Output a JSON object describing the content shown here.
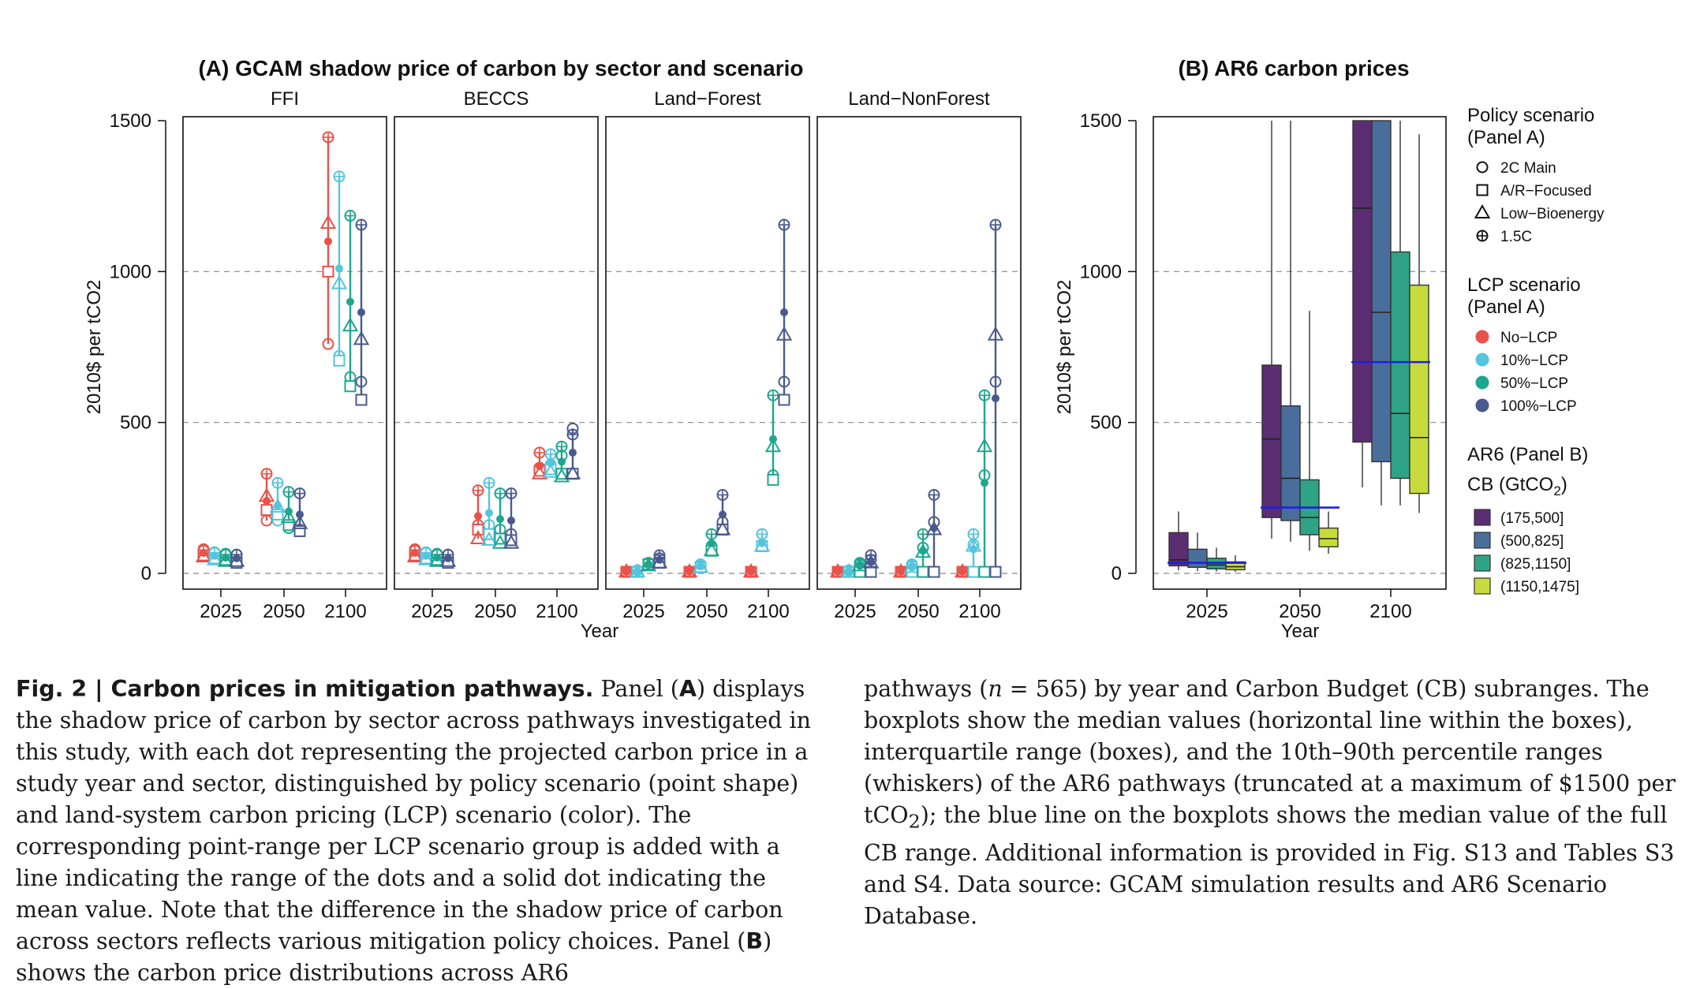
{
  "chart_data": [
    {
      "type": "scatter",
      "title": "(A) GCAM shadow price of carbon by sector and scenario",
      "ylabel": "2010$ per tCO2",
      "xlabel": "Year",
      "ylim": [
        0,
        1500
      ],
      "yticks": [
        "0",
        "500",
        "1000",
        "1500"
      ],
      "xticks": [
        "2025",
        "2050",
        "2100"
      ],
      "grid": "dashed horizontal at 0, 500, 1000",
      "facets": [
        "FFI",
        "BECCS",
        "Land−Forest",
        "Land−NonForest"
      ],
      "years": [
        "2025",
        "2050",
        "2100"
      ],
      "policy_scenarios": [
        "2C Main",
        "A/R−Focused",
        "Low−Bioenergy",
        "1.5C"
      ],
      "lcp_scenarios": [
        "No−LCP",
        "10%−LCP",
        "50%−LCP",
        "100%−LCP"
      ],
      "lcp_colors": [
        "#E8524A",
        "#55C4DD",
        "#1FA68E",
        "#4A5A8E"
      ],
      "series": [
        {
          "facet": "FFI",
          "year": "2025",
          "lcp": "No−LCP",
          "points": [
            80,
            60,
            55,
            75
          ],
          "mean": 68
        },
        {
          "facet": "FFI",
          "year": "2025",
          "lcp": "10%−LCP",
          "points": [
            70,
            50,
            45,
            68
          ],
          "mean": 58
        },
        {
          "facet": "FFI",
          "year": "2025",
          "lcp": "50%−LCP",
          "points": [
            65,
            45,
            40,
            62
          ],
          "mean": 52
        },
        {
          "facet": "FFI",
          "year": "2025",
          "lcp": "100%−LCP",
          "points": [
            62,
            35,
            40,
            62
          ],
          "mean": 50
        },
        {
          "facet": "FFI",
          "year": "2050",
          "lcp": "No−LCP",
          "points": [
            175,
            210,
            255,
            330
          ],
          "mean": 240
        },
        {
          "facet": "FFI",
          "year": "2050",
          "lcp": "10%−LCP",
          "points": [
            175,
            195,
            220,
            300
          ],
          "mean": 225
        },
        {
          "facet": "FFI",
          "year": "2050",
          "lcp": "50%−LCP",
          "points": [
            150,
            160,
            185,
            270
          ],
          "mean": 205
        },
        {
          "facet": "FFI",
          "year": "2050",
          "lcp": "100%−LCP",
          "points": [
            145,
            140,
            165,
            265
          ],
          "mean": 195
        },
        {
          "facet": "FFI",
          "year": "2100",
          "lcp": "No−LCP",
          "points": [
            760,
            1000,
            1160,
            1445
          ],
          "mean": 1100
        },
        {
          "facet": "FFI",
          "year": "2100",
          "lcp": "10%−LCP",
          "points": [
            720,
            705,
            960,
            1315
          ],
          "mean": 1010
        },
        {
          "facet": "FFI",
          "year": "2100",
          "lcp": "50%−LCP",
          "points": [
            650,
            620,
            820,
            1185
          ],
          "mean": 900
        },
        {
          "facet": "FFI",
          "year": "2100",
          "lcp": "100%−LCP",
          "points": [
            635,
            575,
            775,
            1155
          ],
          "mean": 865
        },
        {
          "facet": "BECCS",
          "year": "2025",
          "lcp": "No−LCP",
          "points": [
            80,
            60,
            55,
            75
          ],
          "mean": 68
        },
        {
          "facet": "BECCS",
          "year": "2025",
          "lcp": "10%−LCP",
          "points": [
            70,
            50,
            45,
            68
          ],
          "mean": 58
        },
        {
          "facet": "BECCS",
          "year": "2025",
          "lcp": "50%−LCP",
          "points": [
            65,
            45,
            40,
            62
          ],
          "mean": 52
        },
        {
          "facet": "BECCS",
          "year": "2025",
          "lcp": "100%−LCP",
          "points": [
            62,
            35,
            40,
            62
          ],
          "mean": 50
        },
        {
          "facet": "BECCS",
          "year": "2050",
          "lcp": "No−LCP",
          "points": [
            160,
            145,
            115,
            275
          ],
          "mean": 190
        },
        {
          "facet": "BECCS",
          "year": "2050",
          "lcp": "10%−LCP",
          "points": [
            160,
            130,
            110,
            300
          ],
          "mean": 200
        },
        {
          "facet": "BECCS",
          "year": "2050",
          "lcp": "50%−LCP",
          "points": [
            145,
            115,
            100,
            265
          ],
          "mean": 180
        },
        {
          "facet": "BECCS",
          "year": "2050",
          "lcp": "100%−LCP",
          "points": [
            130,
            110,
            100,
            265
          ],
          "mean": 175
        },
        {
          "facet": "BECCS",
          "year": "2100",
          "lcp": "No−LCP",
          "points": [
            350,
            340,
            330,
            400
          ],
          "mean": 355
        },
        {
          "facet": "BECCS",
          "year": "2100",
          "lcp": "10%−LCP",
          "points": [
            360,
            345,
            335,
            395
          ],
          "mean": 365
        },
        {
          "facet": "BECCS",
          "year": "2100",
          "lcp": "50%−LCP",
          "points": [
            390,
            330,
            320,
            420
          ],
          "mean": 370
        },
        {
          "facet": "BECCS",
          "year": "2100",
          "lcp": "100%−LCP",
          "points": [
            480,
            330,
            330,
            460
          ],
          "mean": 400
        },
        {
          "facet": "Land−Forest",
          "year": "2025",
          "lcp": "No−LCP",
          "points": [
            5,
            5,
            5,
            5
          ],
          "mean": 5
        },
        {
          "facet": "Land−Forest",
          "year": "2025",
          "lcp": "10%−LCP",
          "points": [
            8,
            5,
            5,
            10
          ],
          "mean": 7
        },
        {
          "facet": "Land−Forest",
          "year": "2025",
          "lcp": "50%−LCP",
          "points": [
            30,
            30,
            25,
            35
          ],
          "mean": 30
        },
        {
          "facet": "Land−Forest",
          "year": "2025",
          "lcp": "100%−LCP",
          "points": [
            50,
            35,
            35,
            60
          ],
          "mean": 45
        },
        {
          "facet": "Land−Forest",
          "year": "2050",
          "lcp": "No−LCP",
          "points": [
            5,
            5,
            5,
            5
          ],
          "mean": 5
        },
        {
          "facet": "Land−Forest",
          "year": "2050",
          "lcp": "10%−LCP",
          "points": [
            25,
            20,
            20,
            30
          ],
          "mean": 25
        },
        {
          "facet": "Land−Forest",
          "year": "2050",
          "lcp": "50%−LCP",
          "points": [
            90,
            75,
            75,
            130
          ],
          "mean": 100
        },
        {
          "facet": "Land−Forest",
          "year": "2050",
          "lcp": "100%−LCP",
          "points": [
            170,
            145,
            145,
            260
          ],
          "mean": 195
        },
        {
          "facet": "Land−Forest",
          "year": "2100",
          "lcp": "No−LCP",
          "points": [
            5,
            5,
            5,
            5
          ],
          "mean": 5
        },
        {
          "facet": "Land−Forest",
          "year": "2100",
          "lcp": "10%−LCP",
          "points": [
            95,
            90,
            90,
            130
          ],
          "mean": 100
        },
        {
          "facet": "Land−Forest",
          "year": "2100",
          "lcp": "50%−LCP",
          "points": [
            325,
            310,
            420,
            590
          ],
          "mean": 445
        },
        {
          "facet": "Land−Forest",
          "year": "2100",
          "lcp": "100%−LCP",
          "points": [
            635,
            575,
            790,
            1155
          ],
          "mean": 865
        },
        {
          "facet": "Land−NonForest",
          "year": "2025",
          "lcp": "No−LCP",
          "points": [
            5,
            5,
            5,
            5
          ],
          "mean": 5
        },
        {
          "facet": "Land−NonForest",
          "year": "2025",
          "lcp": "10%−LCP",
          "points": [
            8,
            5,
            5,
            10
          ],
          "mean": 7
        },
        {
          "facet": "Land−NonForest",
          "year": "2025",
          "lcp": "50%−LCP",
          "points": [
            30,
            5,
            25,
            35
          ],
          "mean": 25
        },
        {
          "facet": "Land−NonForest",
          "year": "2025",
          "lcp": "100%−LCP",
          "points": [
            45,
            5,
            35,
            60
          ],
          "mean": 40
        },
        {
          "facet": "Land−NonForest",
          "year": "2050",
          "lcp": "No−LCP",
          "points": [
            5,
            5,
            5,
            5
          ],
          "mean": 5
        },
        {
          "facet": "Land−NonForest",
          "year": "2050",
          "lcp": "10%−LCP",
          "points": [
            25,
            5,
            20,
            30
          ],
          "mean": 20
        },
        {
          "facet": "Land−NonForest",
          "year": "2050",
          "lcp": "50%−LCP",
          "points": [
            85,
            5,
            70,
            130
          ],
          "mean": 75
        },
        {
          "facet": "Land−NonForest",
          "year": "2050",
          "lcp": "100%−LCP",
          "points": [
            170,
            5,
            145,
            260
          ],
          "mean": 150
        },
        {
          "facet": "Land−NonForest",
          "year": "2100",
          "lcp": "No−LCP",
          "points": [
            5,
            5,
            5,
            5
          ],
          "mean": 5
        },
        {
          "facet": "Land−NonForest",
          "year": "2100",
          "lcp": "10%−LCP",
          "points": [
            95,
            5,
            90,
            130
          ],
          "mean": 80
        },
        {
          "facet": "Land−NonForest",
          "year": "2100",
          "lcp": "50%−LCP",
          "points": [
            325,
            5,
            420,
            590
          ],
          "mean": 300
        },
        {
          "facet": "Land−NonForest",
          "year": "2100",
          "lcp": "100%−LCP",
          "points": [
            635,
            5,
            790,
            1155
          ],
          "mean": 580
        }
      ]
    },
    {
      "type": "box",
      "title": "(B) AR6 carbon prices",
      "ylabel": "2010$ per tCO2",
      "xlabel": "Year",
      "ylim": [
        0,
        1500
      ],
      "yticks": [
        "0",
        "500",
        "1000",
        "1500"
      ],
      "xticks": [
        "2025",
        "2050",
        "2100"
      ],
      "grid": "dashed horizontal at 0, 500, 1000",
      "cb_groups": [
        "(175,500]",
        "(500,825]",
        "(825,1150]",
        "(1150,1475]"
      ],
      "cb_colors": [
        "#5B2D72",
        "#4A6E9C",
        "#2FA386",
        "#C7DB3C"
      ],
      "boxes": [
        {
          "year": "2025",
          "cb": "(175,500]",
          "w_lo": 10,
          "q1": 25,
          "median": 45,
          "q3": 135,
          "w_hi": 205
        },
        {
          "year": "2025",
          "cb": "(500,825]",
          "w_lo": 8,
          "q1": 20,
          "median": 35,
          "q3": 80,
          "w_hi": 135
        },
        {
          "year": "2025",
          "cb": "(825,1150]",
          "w_lo": 6,
          "q1": 15,
          "median": 28,
          "q3": 50,
          "w_hi": 85
        },
        {
          "year": "2025",
          "cb": "(1150,1475]",
          "w_lo": 5,
          "q1": 12,
          "median": 22,
          "q3": 38,
          "w_hi": 60
        },
        {
          "year": "2050",
          "cb": "(175,500]",
          "w_lo": 115,
          "q1": 185,
          "median": 445,
          "q3": 690,
          "w_hi": 1500
        },
        {
          "year": "2050",
          "cb": "(500,825]",
          "w_lo": 105,
          "q1": 175,
          "median": 315,
          "q3": 555,
          "w_hi": 1500
        },
        {
          "year": "2050",
          "cb": "(825,1150]",
          "w_lo": 75,
          "q1": 128,
          "median": 185,
          "q3": 310,
          "w_hi": 870
        },
        {
          "year": "2050",
          "cb": "(1150,1475]",
          "w_lo": 65,
          "q1": 88,
          "median": 115,
          "q3": 150,
          "w_hi": 205
        },
        {
          "year": "2100",
          "cb": "(175,500]",
          "w_lo": 285,
          "q1": 435,
          "median": 1210,
          "q3": 1500,
          "w_hi": 1500
        },
        {
          "year": "2100",
          "cb": "(500,825]",
          "w_lo": 225,
          "q1": 370,
          "median": 865,
          "q3": 1500,
          "w_hi": 1500
        },
        {
          "year": "2100",
          "cb": "(825,1150]",
          "w_lo": 225,
          "q1": 315,
          "median": 530,
          "q3": 1065,
          "w_hi": 1500
        },
        {
          "year": "2100",
          "cb": "(1150,1475]",
          "w_lo": 200,
          "q1": 265,
          "median": 450,
          "q3": 955,
          "w_hi": 1455
        }
      ],
      "full_range_median": [
        {
          "year": "2025",
          "value": 35
        },
        {
          "year": "2050",
          "value": 218
        },
        {
          "year": "2100",
          "value": 700
        }
      ],
      "median_line_color": "#1F1FE0"
    }
  ],
  "legend": {
    "policy_title_1": "Policy scenario",
    "policy_title_2": "(Panel A)",
    "lcp_title_1": "LCP scenario",
    "lcp_title_2": "(Panel A)",
    "ar6_title": "AR6 (Panel B)",
    "cb_title": "CB (GtCO",
    "cb_title_sub": "2",
    "cb_title_end": ")"
  },
  "caption": {
    "left_bold": "Fig. 2 | Carbon prices in mitigation pathways.",
    "left_1": " Panel (",
    "left_A": "A",
    "left_2": ") displays the shadow price of carbon by sector across pathways investigated in this study, with each dot representing the projected carbon price in a study year and sector, distinguished by policy scenario (point shape) and land-system carbon pricing (LCP) scenario (color). The corresponding point-range per LCP scenario group is added with a line indicating the range of the dots and a solid dot indicating the mean value. Note that the difference in the shadow price of carbon across sectors reflects various mitigation policy choices. Panel (",
    "left_B": "B",
    "left_3": ") shows the carbon price distributions across AR6",
    "right_1": "pathways (",
    "right_n": "n",
    "right_2": " = 565) by year and Carbon Budget (CB) subranges. The boxplots show the median values (horizontal line within the boxes), interquartile range (boxes), and the 10th–90th percentile ranges (whiskers) of the AR6 pathways (truncated at a maximum of $1500 per tCO",
    "right_sub": "2",
    "right_3": "); the blue line on the boxplots shows the median value of the full CB range. Additional information is provided in Fig. S13 and Tables S3 and S4. Data source: GCAM simulation results and AR6 Scenario Database."
  }
}
